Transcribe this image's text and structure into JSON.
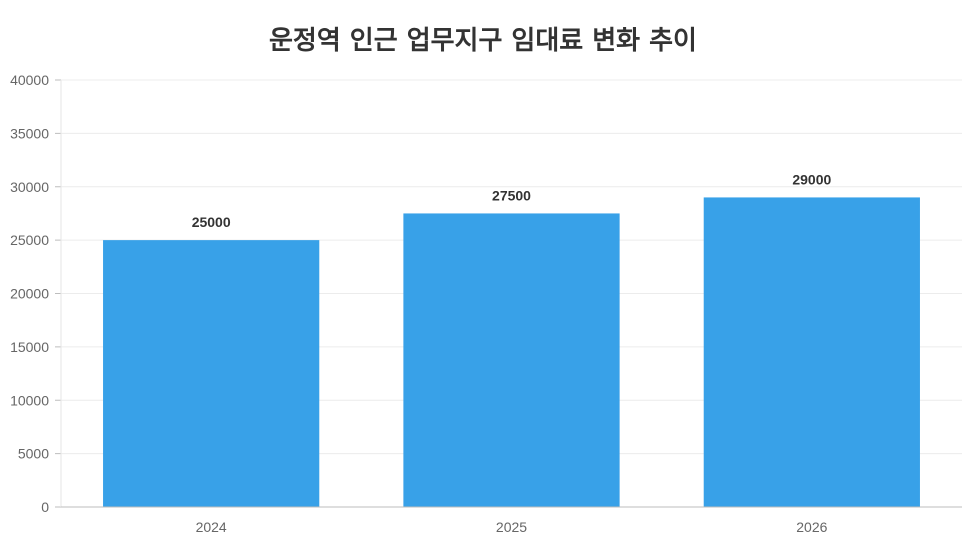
{
  "chart_data": {
    "type": "bar",
    "title": "운정역 인근 업무지구 임대료 변화 추이",
    "categories": [
      "2024",
      "2025",
      "2026"
    ],
    "values": [
      25000,
      27500,
      29000
    ],
    "data_labels": [
      "25000",
      "27500",
      "29000"
    ],
    "ylim": [
      0,
      40000
    ],
    "yticks": [
      "0",
      "5000",
      "10000",
      "15000",
      "20000",
      "25000",
      "30000",
      "35000",
      "40000"
    ],
    "grid": true,
    "legend": "none",
    "bar_color": "#38a1e8"
  }
}
